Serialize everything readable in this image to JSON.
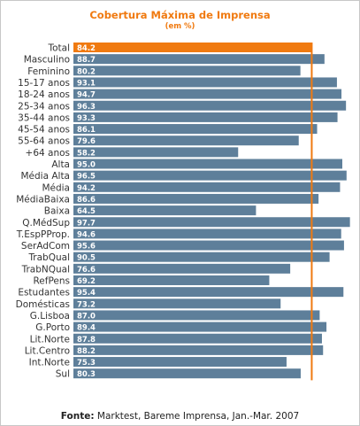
{
  "chart_data": {
    "type": "bar",
    "orientation": "horizontal",
    "title": "Cobertura Máxima de Imprensa",
    "subtitle": "(em %)",
    "xlim": [
      0,
      100
    ],
    "reference_line": 84.2,
    "highlight_category": "Total",
    "categories": [
      "Total",
      "Masculino",
      "Feminino",
      "15-17 anos",
      "18-24 anos",
      "25-34 anos",
      "35-44 anos",
      "45-54 anos",
      "55-64 anos",
      "+64 anos",
      "Alta",
      "Média Alta",
      "Média",
      "MédiaBaixa",
      "Baixa",
      "Q.MédSup",
      "T.EspPProp.",
      "SerAdCom",
      "TrabQual",
      "TrabNQual",
      "RefPens",
      "Estudantes",
      "Domésticas",
      "G.Lisboa",
      "G.Porto",
      "Lit.Norte",
      "Lit.Centro",
      "Int.Norte",
      "Sul"
    ],
    "values": [
      84.2,
      88.7,
      80.2,
      93.1,
      94.7,
      96.3,
      93.3,
      86.1,
      79.6,
      58.2,
      95.0,
      96.5,
      94.2,
      86.6,
      64.5,
      97.7,
      94.6,
      95.6,
      90.5,
      76.6,
      69.2,
      95.4,
      73.2,
      87.0,
      89.4,
      87.8,
      88.2,
      75.3,
      80.3
    ],
    "value_labels": [
      "84.2",
      "88.7",
      "80.2",
      "93.1",
      "94.7",
      "96.3",
      "93.3",
      "86.1",
      "79.6",
      "58.2",
      "95.0",
      "96.5",
      "94.2",
      "86.6",
      "64.5",
      "97.7",
      "94.6",
      "95.6",
      "90.5",
      "76.6",
      "69.2",
      "95.4",
      "73.2",
      "87.0",
      "89.4",
      "87.8",
      "88.2",
      "75.3",
      "80.3"
    ],
    "colors": {
      "bar": "#5e7f9a",
      "highlight": "#f07a10",
      "reference": "#f07a10",
      "title": "#f07a10"
    }
  },
  "source": {
    "label": "Fonte:",
    "text": " Marktest, Bareme Imprensa, Jan.-Mar. 2007"
  }
}
